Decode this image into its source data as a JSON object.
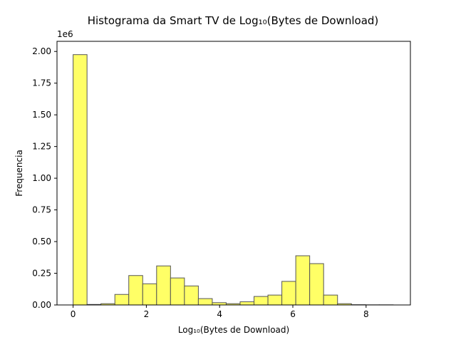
{
  "chart_data": {
    "type": "bar",
    "title": "Histograma da Smart TV de Log₁₀(Bytes de Download)",
    "xlabel": "Log₁₀(Bytes de Download)",
    "ylabel": "Frequencia",
    "y_offset_label": "1e6",
    "xlim": [
      -0.44,
      9.21
    ],
    "ylim": [
      0,
      2.08
    ],
    "x_ticks": [
      0,
      2,
      4,
      6,
      8
    ],
    "y_ticks": [
      0.0,
      0.25,
      0.5,
      0.75,
      1.0,
      1.25,
      1.5,
      1.75,
      2.0
    ],
    "y_tick_labels": [
      "0.00",
      "0.25",
      "0.50",
      "0.75",
      "1.00",
      "1.25",
      "1.50",
      "1.75",
      "2.00"
    ],
    "bar_color": "#ffff66",
    "edge_color": "#555555",
    "bins": [
      {
        "start": 0.0,
        "end": 0.38,
        "value": 1.975
      },
      {
        "start": 0.38,
        "end": 0.76,
        "value": 0.004
      },
      {
        "start": 0.76,
        "end": 1.14,
        "value": 0.01
      },
      {
        "start": 1.14,
        "end": 1.52,
        "value": 0.083
      },
      {
        "start": 1.52,
        "end": 1.9,
        "value": 0.232
      },
      {
        "start": 1.9,
        "end": 2.28,
        "value": 0.167
      },
      {
        "start": 2.28,
        "end": 2.66,
        "value": 0.308
      },
      {
        "start": 2.66,
        "end": 3.04,
        "value": 0.213
      },
      {
        "start": 3.04,
        "end": 3.42,
        "value": 0.15
      },
      {
        "start": 3.42,
        "end": 3.8,
        "value": 0.05
      },
      {
        "start": 3.8,
        "end": 4.18,
        "value": 0.018
      },
      {
        "start": 4.18,
        "end": 4.56,
        "value": 0.01
      },
      {
        "start": 4.56,
        "end": 4.94,
        "value": 0.025
      },
      {
        "start": 4.94,
        "end": 5.32,
        "value": 0.067
      },
      {
        "start": 5.32,
        "end": 5.7,
        "value": 0.078
      },
      {
        "start": 5.7,
        "end": 6.08,
        "value": 0.186
      },
      {
        "start": 6.08,
        "end": 6.46,
        "value": 0.388
      },
      {
        "start": 6.46,
        "end": 6.84,
        "value": 0.326
      },
      {
        "start": 6.84,
        "end": 7.22,
        "value": 0.078
      },
      {
        "start": 7.22,
        "end": 7.6,
        "value": 0.01
      },
      {
        "start": 7.6,
        "end": 7.98,
        "value": 0.002
      },
      {
        "start": 7.98,
        "end": 8.36,
        "value": 0.001
      },
      {
        "start": 8.36,
        "end": 8.74,
        "value": 0.001
      }
    ]
  }
}
